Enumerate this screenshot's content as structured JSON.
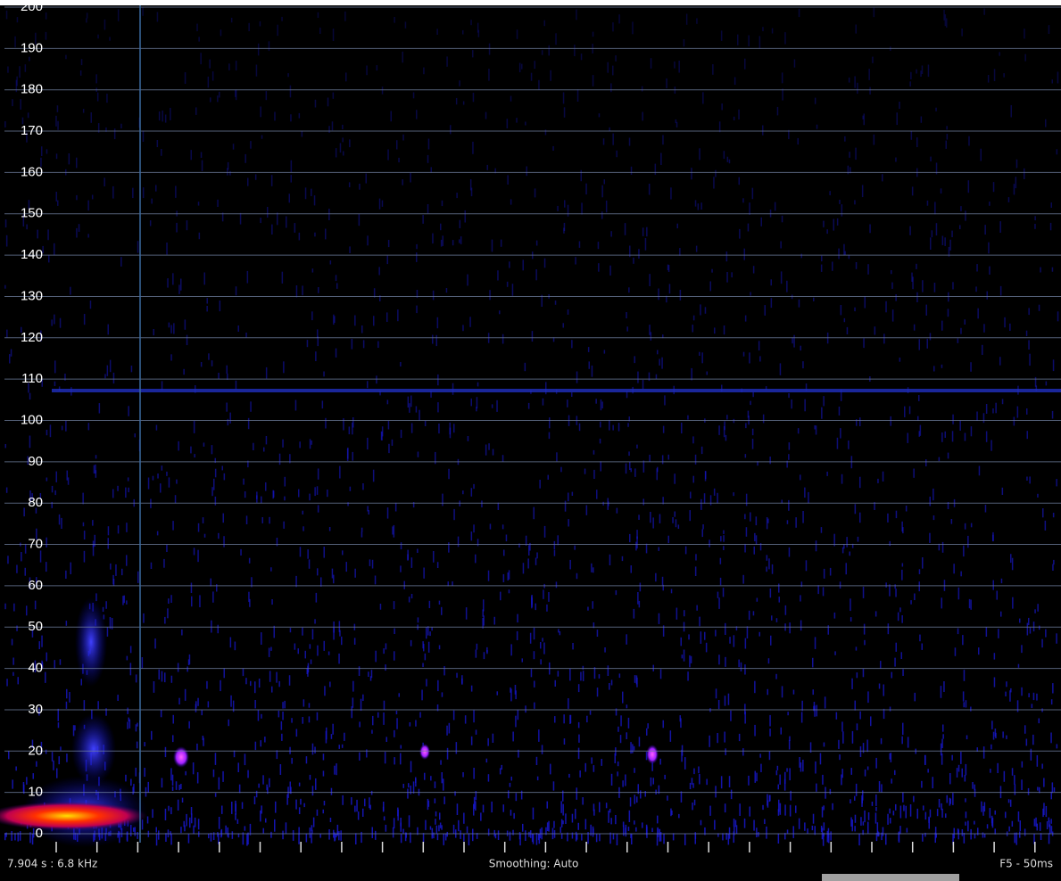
{
  "spectrogram": {
    "ylim": [
      0,
      200
    ],
    "yticks": [
      0,
      10,
      20,
      30,
      40,
      50,
      60,
      70,
      80,
      90,
      100,
      110,
      120,
      130,
      140,
      150,
      160,
      170,
      180,
      190,
      200
    ]
  },
  "status": {
    "position": "7.904 s : 6.8 kHz",
    "smoothing": "Smoothing: Auto",
    "mode": "F5 - 50ms"
  }
}
